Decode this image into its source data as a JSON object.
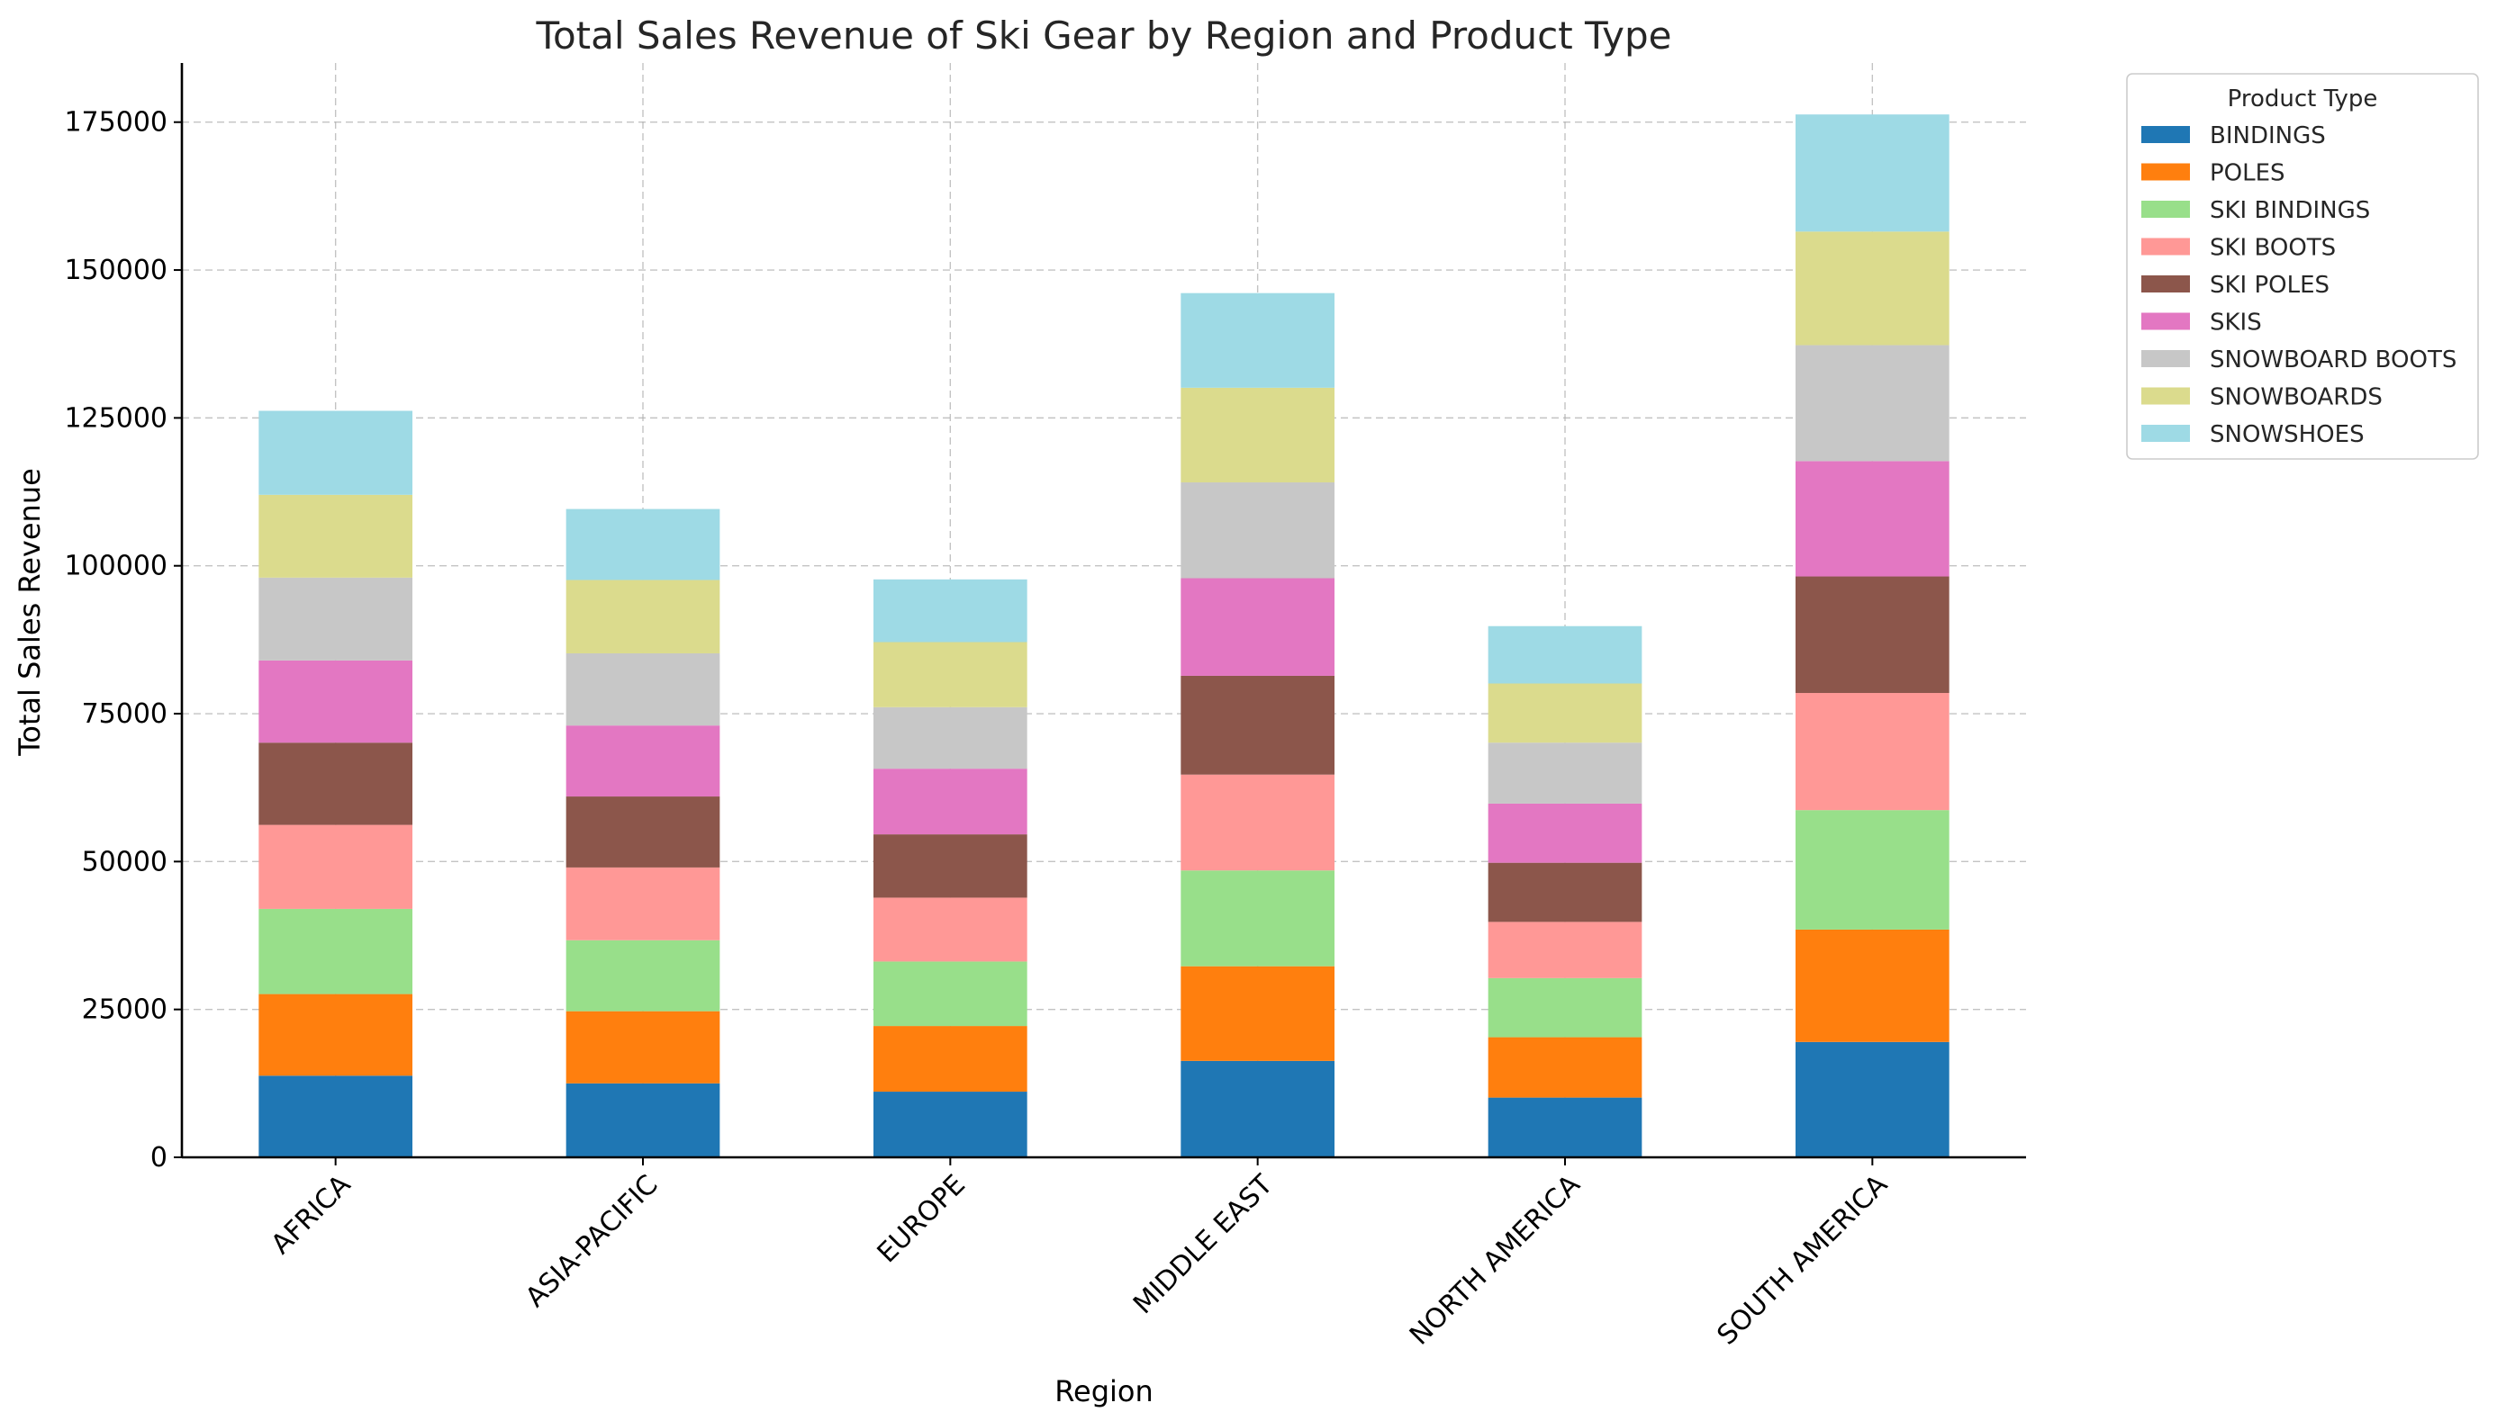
{
  "chart_data": {
    "type": "bar",
    "stacked": true,
    "title": "Total Sales Revenue of Ski Gear by Region and Product Type",
    "xlabel": "Region",
    "ylabel": "Total Sales Revenue",
    "ylim": [
      0,
      185000
    ],
    "yticks": [
      0,
      25000,
      50000,
      75000,
      100000,
      125000,
      150000,
      175000
    ],
    "ytick_labels": [
      "0",
      "25000",
      "50000",
      "75000",
      "100000",
      "125000",
      "150000",
      "175000"
    ],
    "grid": true,
    "legend": {
      "title": "Product Type",
      "placement": "outside-top-right"
    },
    "categories": [
      "AFRICA",
      "ASIA-PACIFIC",
      "EUROPE",
      "MIDDLE EAST",
      "NORTH AMERICA",
      "SOUTH AMERICA"
    ],
    "series": [
      {
        "name": "BINDINGS",
        "color": "#1f77b4",
        "values": [
          13800,
          12500,
          11100,
          16300,
          10100,
          19500
        ]
      },
      {
        "name": "POLES",
        "color": "#ff7f0e",
        "values": [
          13800,
          12200,
          11100,
          16000,
          10200,
          19000
        ]
      },
      {
        "name": "SKI BINDINGS",
        "color": "#98df8a",
        "values": [
          14400,
          12000,
          10900,
          16200,
          10000,
          20200
        ]
      },
      {
        "name": "SKI BOOTS",
        "color": "#ff9896",
        "values": [
          14200,
          12300,
          10800,
          16200,
          9500,
          19800
        ]
      },
      {
        "name": "SKI POLES",
        "color": "#8c564b",
        "values": [
          13900,
          12000,
          10700,
          16700,
          10000,
          19700
        ]
      },
      {
        "name": "SKIS",
        "color": "#e377c2",
        "values": [
          13900,
          12000,
          11100,
          16500,
          10000,
          19500
        ]
      },
      {
        "name": "SNOWBOARD BOOTS",
        "color": "#c7c7c7",
        "values": [
          14000,
          12200,
          10400,
          16200,
          10300,
          19600
        ]
      },
      {
        "name": "SNOWBOARDS",
        "color": "#dbdb8d",
        "values": [
          14000,
          12400,
          11000,
          16000,
          10000,
          19200
        ]
      },
      {
        "name": "SNOWSHOES",
        "color": "#9edae5",
        "values": [
          14200,
          12000,
          10600,
          16000,
          9700,
          19800
        ]
      }
    ]
  }
}
